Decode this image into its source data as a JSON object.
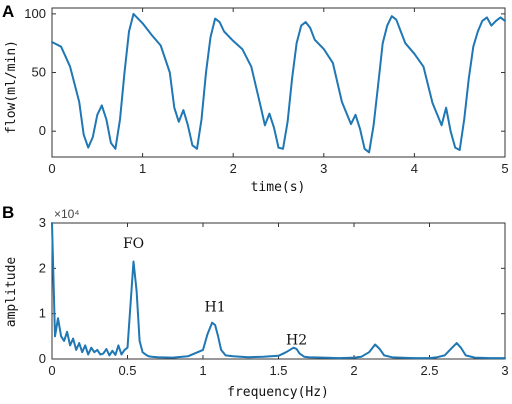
{
  "chart_data": [
    {
      "panel": "A",
      "type": "line",
      "xlabel": "time(s)",
      "ylabel": "flow(ml/min)",
      "xlim": [
        0,
        5
      ],
      "ylim": [
        -22,
        105
      ],
      "xticks": [
        "0",
        "1",
        "2",
        "3",
        "4",
        "5"
      ],
      "yticks": [
        "0",
        "50",
        "100"
      ],
      "grid": false,
      "series": [
        {
          "x": [
            0,
            0.1,
            0.2,
            0.3,
            0.35,
            0.4,
            0.45,
            0.5,
            0.55,
            0.6,
            0.65,
            0.7,
            0.75,
            0.8,
            0.85,
            0.9,
            1.0,
            1.1,
            1.2,
            1.3,
            1.35,
            1.4,
            1.45,
            1.5,
            1.55,
            1.6,
            1.65,
            1.7,
            1.75,
            1.8,
            1.85,
            1.9,
            2.0,
            2.1,
            2.2,
            2.3,
            2.35,
            2.4,
            2.45,
            2.5,
            2.55,
            2.6,
            2.65,
            2.7,
            2.75,
            2.8,
            2.85,
            2.9,
            3.0,
            3.1,
            3.2,
            3.3,
            3.35,
            3.4,
            3.45,
            3.5,
            3.55,
            3.6,
            3.65,
            3.7,
            3.75,
            3.8,
            3.85,
            3.9,
            4.0,
            4.1,
            4.2,
            4.3,
            4.35,
            4.4,
            4.45,
            4.5,
            4.55,
            4.6,
            4.65,
            4.7,
            4.75,
            4.8,
            4.85,
            4.9,
            4.95,
            5.0
          ],
          "y": [
            76,
            72,
            55,
            25,
            -3,
            -14,
            -5,
            14,
            22,
            10,
            -10,
            -15,
            10,
            50,
            85,
            100,
            92,
            82,
            73,
            50,
            20,
            8,
            18,
            5,
            -12,
            -15,
            10,
            50,
            80,
            96,
            93,
            85,
            77,
            70,
            55,
            22,
            5,
            15,
            3,
            -14,
            -15,
            8,
            45,
            75,
            90,
            93,
            88,
            78,
            70,
            58,
            25,
            6,
            14,
            2,
            -15,
            -18,
            5,
            40,
            75,
            90,
            98,
            95,
            85,
            75,
            66,
            55,
            24,
            5,
            20,
            0,
            -14,
            -16,
            10,
            45,
            72,
            85,
            94,
            97,
            90,
            94,
            97,
            94
          ]
        }
      ]
    },
    {
      "panel": "B",
      "type": "line",
      "xlabel": "frequency(Hz)",
      "ylabel": "amplitude",
      "y_multiplier": "×10⁴",
      "xlim": [
        0,
        3
      ],
      "ylim": [
        0,
        30000
      ],
      "xticks": [
        "0",
        "0.5",
        "1",
        "1.5",
        "2",
        "2.5",
        "3"
      ],
      "yticks": [
        "0",
        "1",
        "2",
        "3"
      ],
      "grid": false,
      "annotations": [
        {
          "text": "FO",
          "x": 0.54,
          "y": 24500
        },
        {
          "text": "H1",
          "x": 1.08,
          "y": 10500
        },
        {
          "text": "H2",
          "x": 1.62,
          "y": 3200
        }
      ],
      "series": [
        {
          "x": [
            0,
            0.02,
            0.04,
            0.06,
            0.08,
            0.1,
            0.12,
            0.14,
            0.16,
            0.18,
            0.2,
            0.22,
            0.24,
            0.26,
            0.28,
            0.3,
            0.32,
            0.34,
            0.36,
            0.38,
            0.4,
            0.42,
            0.44,
            0.46,
            0.48,
            0.5,
            0.52,
            0.54,
            0.56,
            0.58,
            0.6,
            0.62,
            0.64,
            0.66,
            0.7,
            0.8,
            0.9,
            1.0,
            1.03,
            1.06,
            1.08,
            1.1,
            1.12,
            1.15,
            1.2,
            1.3,
            1.4,
            1.5,
            1.55,
            1.6,
            1.62,
            1.64,
            1.67,
            1.7,
            1.8,
            1.9,
            2.0,
            2.05,
            2.1,
            2.14,
            2.17,
            2.2,
            2.25,
            2.3,
            2.4,
            2.5,
            2.55,
            2.6,
            2.65,
            2.68,
            2.71,
            2.74,
            2.8,
            2.9,
            3.0
          ],
          "y": [
            31000,
            5000,
            9000,
            5000,
            4000,
            6000,
            3000,
            4500,
            2000,
            3500,
            1500,
            3000,
            1000,
            2500,
            1500,
            2000,
            1000,
            1200,
            2200,
            800,
            1800,
            900,
            3000,
            1000,
            2000,
            2500,
            12000,
            21500,
            15000,
            4000,
            1500,
            1000,
            600,
            500,
            400,
            300,
            600,
            2000,
            5500,
            8000,
            7500,
            5000,
            2000,
            800,
            600,
            400,
            500,
            700,
            1500,
            2500,
            2200,
            1200,
            500,
            400,
            300,
            200,
            300,
            500,
            1500,
            3200,
            2200,
            800,
            400,
            300,
            200,
            200,
            400,
            800,
            2500,
            3500,
            2400,
            800,
            300,
            200,
            200
          ]
        }
      ]
    }
  ]
}
